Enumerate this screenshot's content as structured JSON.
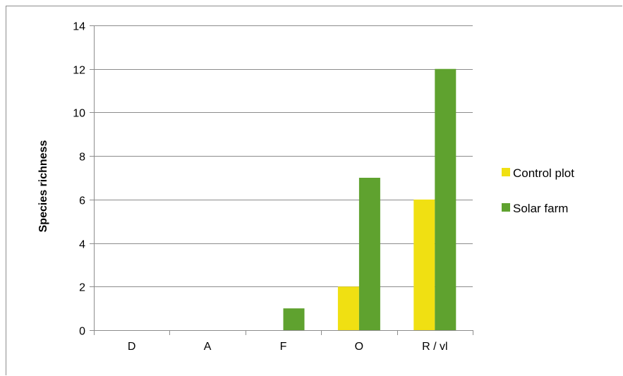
{
  "chart_data": {
    "type": "bar",
    "title": "",
    "xlabel": "",
    "ylabel": "Species richness",
    "ylim": [
      0,
      14
    ],
    "yticks": [
      0,
      2,
      4,
      6,
      8,
      10,
      12,
      14
    ],
    "categories": [
      "D",
      "A",
      "F",
      "O",
      "R / vl"
    ],
    "series": [
      {
        "name": "Control plot",
        "color": "#f0e012",
        "values": [
          0,
          0,
          0,
          2,
          6
        ]
      },
      {
        "name": "Solar farm",
        "color": "#5fa22f",
        "values": [
          0,
          0,
          1,
          7,
          12
        ]
      }
    ],
    "grid": true,
    "legend": "right"
  }
}
